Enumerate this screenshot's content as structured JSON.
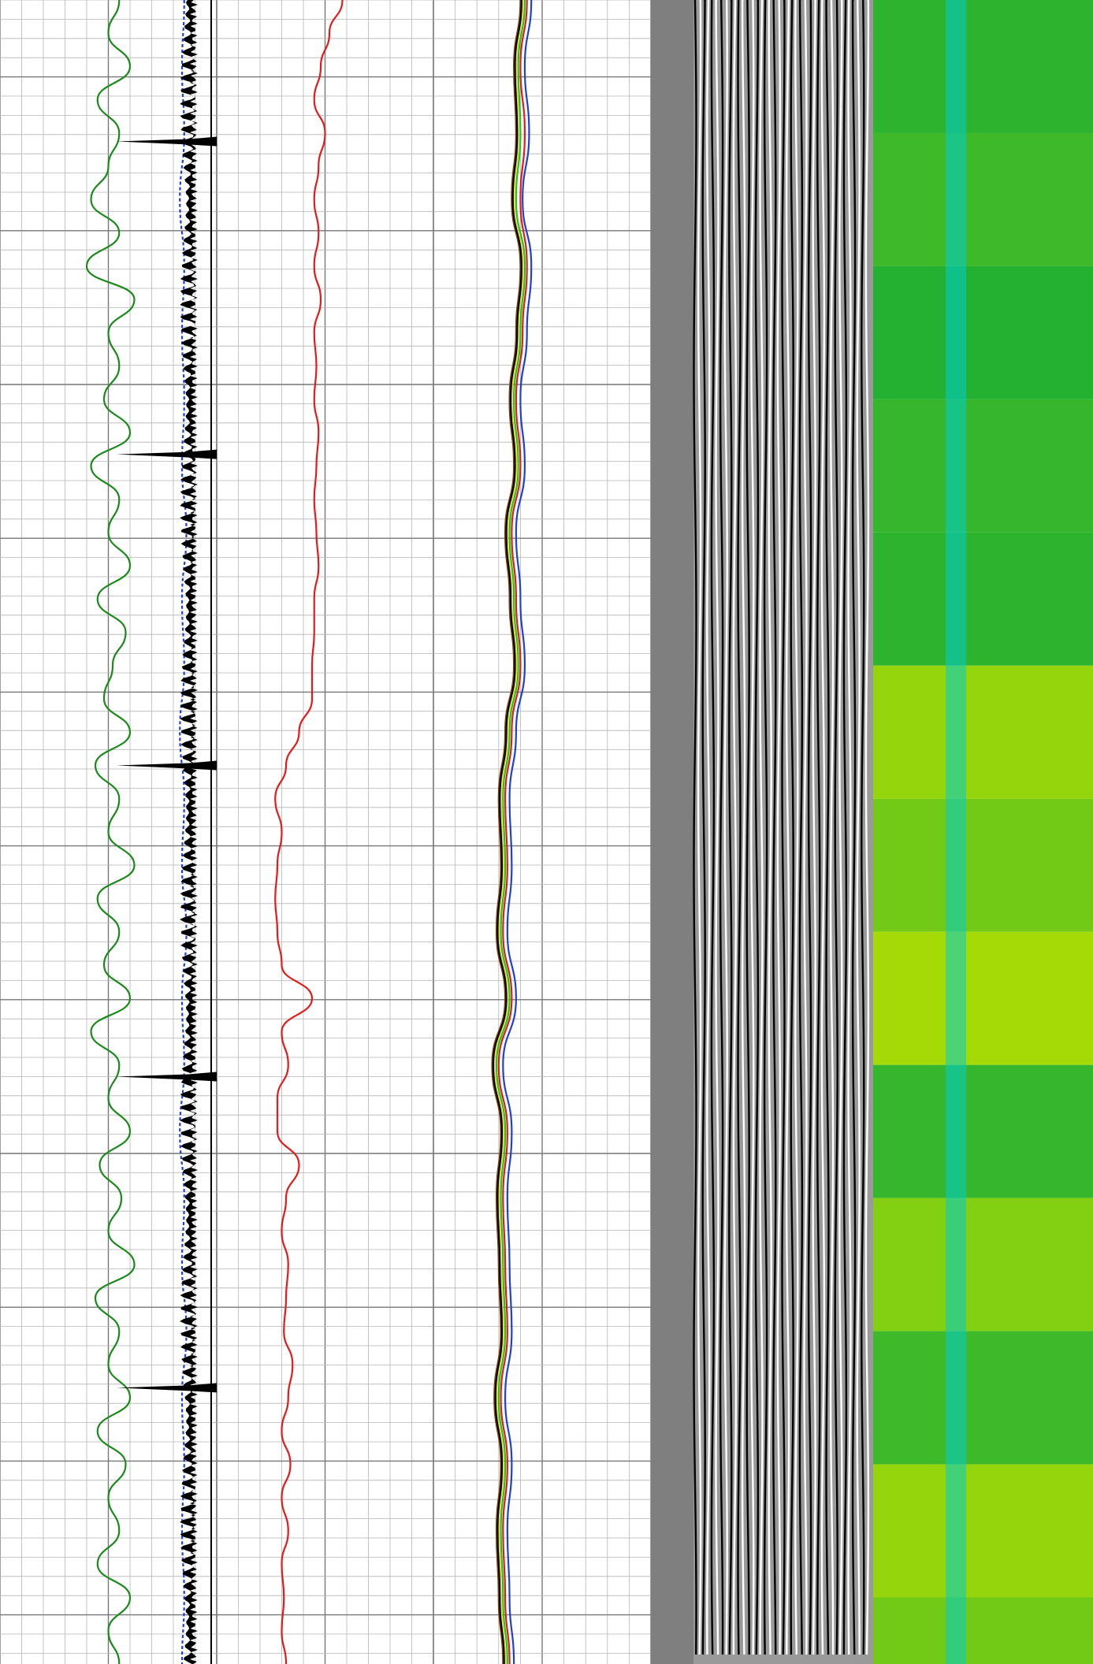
{
  "chart_data": {
    "type": "line",
    "title": "",
    "depth_range": [
      0,
      100
    ],
    "tracks": [
      {
        "name": "",
        "grid": true,
        "x_range": [
          0,
          1
        ],
        "series": [
          {
            "color": "#1a8a1a",
            "style": "solid",
            "depth": [
              0,
              2,
              4,
              6,
              8,
              10,
              12,
              14,
              16,
              18,
              20,
              22,
              24,
              26,
              28,
              30,
              32,
              34,
              36,
              38,
              40,
              42,
              44,
              46,
              48,
              50,
              52,
              54,
              56,
              58,
              60,
              62,
              64,
              66,
              68,
              70,
              72,
              74,
              76,
              78,
              80,
              82,
              84,
              86,
              88,
              90,
              92,
              94,
              96,
              98,
              100
            ],
            "values": [
              0.55,
              0.5,
              0.6,
              0.45,
              0.55,
              0.5,
              0.42,
              0.55,
              0.4,
              0.62,
              0.5,
              0.55,
              0.48,
              0.6,
              0.42,
              0.55,
              0.5,
              0.6,
              0.45,
              0.58,
              0.52,
              0.48,
              0.6,
              0.44,
              0.55,
              0.5,
              0.62,
              0.45,
              0.55,
              0.48,
              0.6,
              0.42,
              0.55,
              0.5,
              0.6,
              0.46,
              0.56,
              0.5,
              0.62,
              0.44,
              0.55,
              0.5,
              0.6,
              0.45,
              0.58,
              0.5,
              0.55,
              0.45,
              0.6,
              0.5,
              0.55
            ]
          },
          {
            "color": "#1f3fd6",
            "style": "dashed",
            "depth": [
              0,
              4,
              8,
              12,
              16,
              20,
              24,
              28,
              32,
              36,
              40,
              44,
              48,
              52,
              56,
              60,
              64,
              68,
              72,
              76,
              80,
              84,
              88,
              92,
              96,
              100
            ],
            "values": [
              0.85,
              0.84,
              0.85,
              0.83,
              0.85,
              0.84,
              0.85,
              0.84,
              0.86,
              0.84,
              0.85,
              0.83,
              0.85,
              0.84,
              0.86,
              0.84,
              0.85,
              0.83,
              0.85,
              0.84,
              0.86,
              0.84,
              0.85,
              0.84,
              0.85,
              0.84
            ]
          }
        ]
      },
      {
        "name": "",
        "grid": true,
        "x_range": [
          0,
          1
        ],
        "series": [
          {
            "color": "#e51a1a",
            "style": "solid",
            "depth": [
              0,
              2,
              4,
              6,
              8,
              10,
              12,
              14,
              16,
              18,
              20,
              22,
              24,
              26,
              28,
              30,
              32,
              34,
              36,
              38,
              40,
              42,
              44,
              46,
              48,
              50,
              52,
              54,
              56,
              58,
              60,
              62,
              64,
              66,
              68,
              70,
              72,
              74,
              76,
              78,
              80,
              82,
              84,
              86,
              88,
              90,
              92,
              94,
              96,
              98,
              100
            ],
            "values": [
              0.58,
              0.52,
              0.48,
              0.45,
              0.5,
              0.47,
              0.45,
              0.47,
              0.45,
              0.48,
              0.45,
              0.46,
              0.45,
              0.47,
              0.46,
              0.45,
              0.46,
              0.47,
              0.45,
              0.45,
              0.44,
              0.44,
              0.38,
              0.32,
              0.27,
              0.3,
              0.28,
              0.27,
              0.28,
              0.3,
              0.44,
              0.3,
              0.33,
              0.28,
              0.28,
              0.38,
              0.32,
              0.3,
              0.33,
              0.32,
              0.31,
              0.35,
              0.33,
              0.3,
              0.34,
              0.3,
              0.33,
              0.3,
              0.31,
              0.3,
              0.32
            ]
          }
        ]
      },
      {
        "name": "",
        "grid": true,
        "x_range": [
          0,
          1
        ],
        "series": [
          {
            "color": "#1f3fd6",
            "style": "solid",
            "depth": [
              0,
              4,
              8,
              12,
              16,
              20,
              24,
              28,
              32,
              36,
              40,
              44,
              48,
              52,
              56,
              60,
              64,
              68,
              72,
              76,
              80,
              84,
              88,
              92,
              96,
              100
            ],
            "values": [
              0.45,
              0.42,
              0.44,
              0.41,
              0.45,
              0.43,
              0.4,
              0.42,
              0.38,
              0.4,
              0.42,
              0.38,
              0.35,
              0.36,
              0.34,
              0.38,
              0.32,
              0.36,
              0.34,
              0.35,
              0.36,
              0.33,
              0.36,
              0.34,
              0.35,
              0.37
            ]
          },
          {
            "color": "#e51a1a",
            "style": "solid",
            "depth": [
              0,
              4,
              8,
              12,
              16,
              20,
              24,
              28,
              32,
              36,
              40,
              44,
              48,
              52,
              56,
              60,
              64,
              68,
              72,
              76,
              80,
              84,
              88,
              92,
              96,
              100
            ],
            "values": [
              0.43,
              0.4,
              0.42,
              0.4,
              0.43,
              0.41,
              0.38,
              0.4,
              0.36,
              0.38,
              0.4,
              0.36,
              0.33,
              0.34,
              0.32,
              0.36,
              0.3,
              0.34,
              0.32,
              0.33,
              0.34,
              0.31,
              0.34,
              0.32,
              0.33,
              0.35
            ]
          },
          {
            "color": "#22c222",
            "style": "solid",
            "depth": [
              0,
              4,
              8,
              12,
              16,
              20,
              24,
              28,
              32,
              36,
              40,
              44,
              48,
              52,
              56,
              60,
              64,
              68,
              72,
              76,
              80,
              84,
              88,
              92,
              96,
              100
            ],
            "values": [
              0.42,
              0.39,
              0.4,
              0.38,
              0.42,
              0.4,
              0.37,
              0.39,
              0.35,
              0.37,
              0.39,
              0.35,
              0.32,
              0.33,
              0.31,
              0.35,
              0.29,
              0.33,
              0.31,
              0.32,
              0.33,
              0.3,
              0.33,
              0.31,
              0.32,
              0.34
            ]
          },
          {
            "color": "#e6d800",
            "style": "solid",
            "depth": [
              0,
              4,
              8,
              12,
              16,
              20,
              24,
              28,
              32,
              36,
              40,
              44,
              48,
              52,
              56,
              60,
              64,
              68,
              72,
              76,
              80,
              84,
              88,
              92,
              96,
              100
            ],
            "values": [
              0.41,
              0.38,
              0.39,
              0.37,
              0.41,
              0.39,
              0.36,
              0.38,
              0.34,
              0.36,
              0.38,
              0.34,
              0.31,
              0.32,
              0.3,
              0.34,
              0.28,
              0.32,
              0.3,
              0.31,
              0.32,
              0.29,
              0.32,
              0.3,
              0.31,
              0.33
            ]
          },
          {
            "color": "#8b4513",
            "style": "solid",
            "depth": [
              0,
              4,
              8,
              12,
              16,
              20,
              24,
              28,
              32,
              36,
              40,
              44,
              48,
              52,
              56,
              60,
              64,
              68,
              72,
              76,
              80,
              84,
              88,
              92,
              96,
              100
            ],
            "values": [
              0.4,
              0.37,
              0.38,
              0.36,
              0.4,
              0.38,
              0.35,
              0.37,
              0.33,
              0.35,
              0.37,
              0.33,
              0.3,
              0.31,
              0.29,
              0.33,
              0.27,
              0.31,
              0.29,
              0.3,
              0.31,
              0.28,
              0.31,
              0.29,
              0.3,
              0.32
            ]
          },
          {
            "color": "#000000",
            "style": "solid",
            "depth": [
              0,
              4,
              8,
              12,
              16,
              20,
              24,
              28,
              32,
              36,
              40,
              44,
              48,
              52,
              56,
              60,
              64,
              68,
              72,
              76,
              80,
              84,
              88,
              92,
              96,
              100
            ],
            "values": [
              0.405,
              0.375,
              0.385,
              0.365,
              0.405,
              0.385,
              0.355,
              0.375,
              0.335,
              0.355,
              0.375,
              0.335,
              0.305,
              0.315,
              0.295,
              0.335,
              0.275,
              0.315,
              0.295,
              0.305,
              0.315,
              0.285,
              0.315,
              0.295,
              0.305,
              0.325
            ]
          }
        ]
      }
    ],
    "spike_depths": [
      8.5,
      27.3,
      46,
      64.7,
      83.4
    ],
    "waveform_track": {
      "type": "variable-density",
      "colors": [
        "#000000",
        "#ffffff",
        "#9a9a9a"
      ]
    },
    "heatmap_track": {
      "type": "heatmap",
      "colors": [
        "#00d9b5",
        "#00ced1",
        "#0aa83a",
        "#b7e000"
      ],
      "bands_depth": [
        0,
        8,
        16,
        24,
        32,
        40,
        48,
        56,
        64,
        72,
        80,
        88,
        96,
        100
      ],
      "bands_level": [
        0.2,
        0.3,
        0.15,
        0.25,
        0.2,
        0.8,
        0.6,
        0.9,
        0.25,
        0.7,
        0.3,
        0.8,
        0.6,
        0.7
      ]
    }
  }
}
